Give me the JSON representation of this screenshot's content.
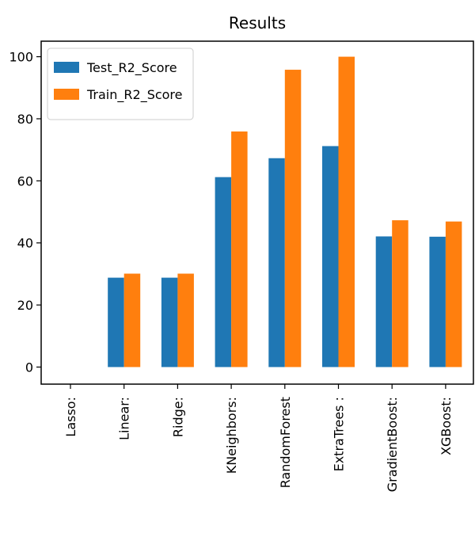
{
  "chart_data": {
    "type": "bar",
    "title": "Results",
    "xlabel": "",
    "ylabel": "",
    "categories": [
      "Lasso:",
      "Linear:",
      "Ridge:",
      "KNeighbors:",
      "RandomForest",
      "ExtraTrees :",
      "GradientBoost:",
      "XGBoost:"
    ],
    "series": [
      {
        "name": "Test_R2_Score",
        "color": "#1f77b4",
        "values": [
          0,
          28.8,
          28.8,
          61.2,
          67.3,
          71.2,
          42.1,
          42.0
        ]
      },
      {
        "name": "Train_R2_Score",
        "color": "#ff7f0e",
        "values": [
          0,
          30.1,
          30.1,
          75.9,
          95.8,
          100.0,
          47.3,
          46.9
        ]
      }
    ],
    "ylim": [
      -5.5,
      105
    ],
    "yticks": [
      0,
      20,
      40,
      60,
      80,
      100
    ],
    "grid": false,
    "legend_position": "upper-left"
  }
}
